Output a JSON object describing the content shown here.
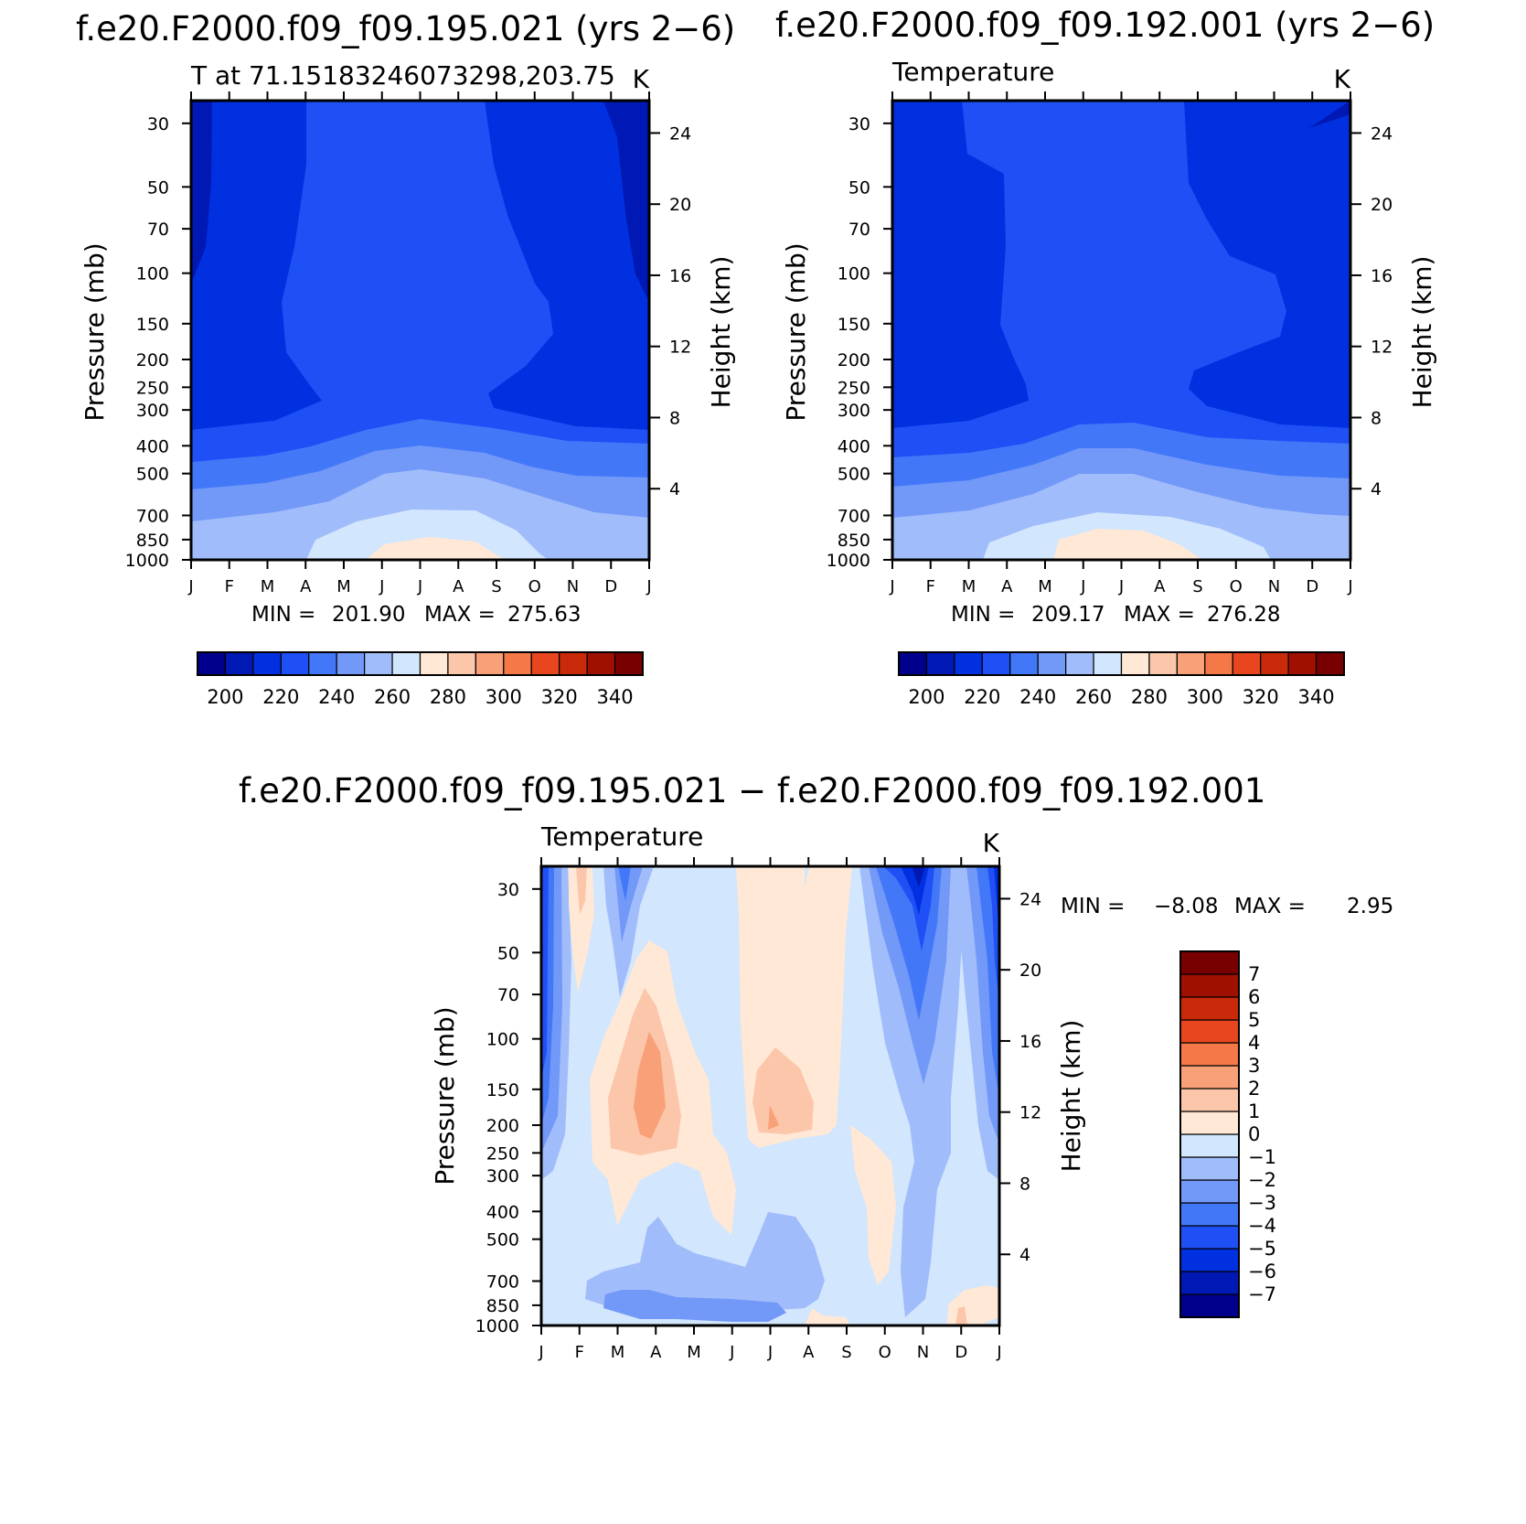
{
  "chart_data": [
    {
      "id": "p1",
      "type": "filled-contour",
      "title": "f.e20.F2000.f09_f09.195.021 (yrs 2−6)",
      "subtitle_left": "T at 71.15183246073298,203.75",
      "subtitle_right": "K",
      "ylabel": "Pressure (mb)",
      "ylabel_right": "Height (km)",
      "x_ticks": [
        "J",
        "F",
        "M",
        "A",
        "M",
        "J",
        "J",
        "A",
        "S",
        "O",
        "N",
        "D",
        "J"
      ],
      "pressure_ticks": [
        30,
        50,
        70,
        100,
        150,
        200,
        250,
        300,
        400,
        500,
        700,
        850,
        1000
      ],
      "height_ticks": [
        4,
        8,
        12,
        16,
        20,
        24
      ],
      "ylim_mb": [
        1000,
        25
      ],
      "stats": {
        "min_label": "MIN =",
        "min": "201.90",
        "max_label": "MAX =",
        "max": "275.63"
      },
      "colorbar": {
        "levels": [
          200,
          210,
          220,
          230,
          240,
          250,
          260,
          270,
          280,
          290,
          300,
          310,
          320,
          330,
          340
        ],
        "labels": [
          "200",
          "220",
          "240",
          "260",
          "280",
          "300",
          "320",
          "340"
        ],
        "colors": [
          "#00008c",
          "#0018b4",
          "#0030e0",
          "#1e50f5",
          "#4278f8",
          "#7298f8",
          "#a0bcfa",
          "#d2e6fd",
          "#ffe8d6",
          "#fcc6aa",
          "#f8a078",
          "#f57848",
          "#e8461e",
          "#c82a0a",
          "#a01000",
          "#780000"
        ]
      }
    },
    {
      "id": "p2",
      "type": "filled-contour",
      "title": "f.e20.F2000.f09_f09.192.001 (yrs 2−6)",
      "subtitle_left": "Temperature",
      "subtitle_right": "K",
      "ylabel": "Pressure (mb)",
      "ylabel_right": "Height (km)",
      "x_ticks": [
        "J",
        "F",
        "M",
        "A",
        "M",
        "J",
        "J",
        "A",
        "S",
        "O",
        "N",
        "D",
        "J"
      ],
      "pressure_ticks": [
        30,
        50,
        70,
        100,
        150,
        200,
        250,
        300,
        400,
        500,
        700,
        850,
        1000
      ],
      "height_ticks": [
        4,
        8,
        12,
        16,
        20,
        24
      ],
      "ylim_mb": [
        1000,
        25
      ],
      "stats": {
        "min_label": "MIN =",
        "min": "209.17",
        "max_label": "MAX =",
        "max": "276.28"
      },
      "colorbar": {
        "levels": [
          200,
          210,
          220,
          230,
          240,
          250,
          260,
          270,
          280,
          290,
          300,
          310,
          320,
          330,
          340
        ],
        "labels": [
          "200",
          "220",
          "240",
          "260",
          "280",
          "300",
          "320",
          "340"
        ],
        "colors": [
          "#00008c",
          "#0018b4",
          "#0030e0",
          "#1e50f5",
          "#4278f8",
          "#7298f8",
          "#a0bcfa",
          "#d2e6fd",
          "#ffe8d6",
          "#fcc6aa",
          "#f8a078",
          "#f57848",
          "#e8461e",
          "#c82a0a",
          "#a01000",
          "#780000"
        ]
      }
    },
    {
      "id": "p3",
      "type": "filled-contour",
      "title": "f.e20.F2000.f09_f09.195.021 − f.e20.F2000.f09_f09.192.001",
      "subtitle_left": "Temperature",
      "subtitle_right": "K",
      "ylabel": "Pressure (mb)",
      "ylabel_right": "Height (km)",
      "x_ticks": [
        "J",
        "F",
        "M",
        "A",
        "M",
        "J",
        "J",
        "A",
        "S",
        "O",
        "N",
        "D",
        "J"
      ],
      "pressure_ticks": [
        30,
        50,
        70,
        100,
        150,
        200,
        250,
        300,
        400,
        500,
        700,
        850,
        1000
      ],
      "height_ticks": [
        4,
        8,
        12,
        16,
        20,
        24
      ],
      "ylim_mb": [
        1000,
        25
      ],
      "stats": {
        "min_label": "MIN =",
        "min": "−8.08",
        "max_label": "MAX =",
        "max": "2.95"
      },
      "colorbar": {
        "levels": [
          -7,
          -6,
          -5,
          -4,
          -3,
          -2,
          -1,
          0,
          1,
          2,
          3,
          4,
          5,
          6,
          7
        ],
        "labels": [
          "−7",
          "−6",
          "−5",
          "−4",
          "−3",
          "−2",
          "−1",
          "0",
          "1",
          "2",
          "3",
          "4",
          "5",
          "6",
          "7"
        ],
        "colors": [
          "#00008c",
          "#0018b4",
          "#0030e0",
          "#1e50f5",
          "#4278f8",
          "#7298f8",
          "#a0bcfa",
          "#d2e6fd",
          "#ffe8d6",
          "#fcc6aa",
          "#f8a078",
          "#f57848",
          "#e8461e",
          "#c82a0a",
          "#a01000",
          "#780000"
        ]
      }
    }
  ]
}
